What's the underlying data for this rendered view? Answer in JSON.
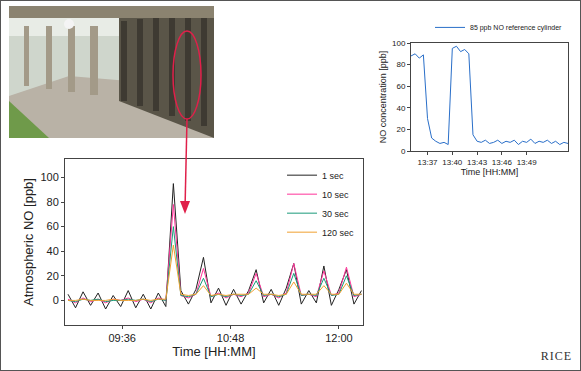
{
  "chart_data": [
    {
      "type": "line",
      "x": [
        540,
        545,
        550,
        555,
        560,
        565,
        570,
        575,
        580,
        585,
        590,
        595,
        600,
        605,
        610,
        615,
        620,
        625,
        630,
        635,
        640,
        645,
        650,
        655,
        660,
        665,
        670,
        675,
        680,
        685,
        690,
        695,
        700,
        705,
        710,
        715,
        720,
        725,
        730,
        735
      ],
      "series": [
        {
          "name": "1 sec",
          "color": "#222222",
          "values": [
            5,
            -6,
            7,
            -4,
            6,
            -7,
            4,
            -5,
            8,
            -6,
            5,
            -7,
            6,
            -5,
            95,
            8,
            -3,
            9,
            35,
            -2,
            10,
            -4,
            9,
            -3,
            8,
            25,
            -2,
            9,
            -4,
            10,
            30,
            -3,
            8,
            -2,
            28,
            -4,
            9,
            25,
            -3,
            8
          ]
        },
        {
          "name": "10 sec",
          "color": "#ff3399",
          "values": [
            1,
            -2,
            2,
            -1,
            1,
            -2,
            1,
            0,
            2,
            -1,
            1,
            -2,
            2,
            0,
            78,
            4,
            2,
            5,
            26,
            3,
            6,
            2,
            5,
            3,
            6,
            22,
            3,
            5,
            2,
            6,
            30,
            4,
            5,
            3,
            24,
            4,
            6,
            27,
            3,
            5
          ]
        },
        {
          "name": "30 sec",
          "color": "#1a9a7a",
          "values": [
            0,
            -1,
            1,
            0,
            1,
            -1,
            0,
            0,
            1,
            0,
            1,
            -1,
            1,
            0,
            60,
            4,
            3,
            5,
            18,
            3,
            5,
            3,
            5,
            4,
            5,
            16,
            4,
            5,
            3,
            5,
            22,
            4,
            5,
            4,
            18,
            4,
            5,
            20,
            4,
            5
          ]
        },
        {
          "name": "120 sec",
          "color": "#f0a030",
          "values": [
            0,
            0,
            1,
            0,
            0,
            0,
            1,
            0,
            0,
            0,
            1,
            0,
            1,
            1,
            45,
            5,
            4,
            5,
            12,
            4,
            5,
            4,
            5,
            5,
            5,
            10,
            5,
            5,
            4,
            5,
            15,
            5,
            5,
            5,
            12,
            5,
            5,
            14,
            5,
            5
          ]
        }
      ],
      "x_label": "Time [HH:MM]",
      "y_label": "Atmospheric NO [ppb]",
      "xlim": [
        538,
        736
      ],
      "xticks": [
        {
          "value": 576,
          "label": "09:36"
        },
        {
          "value": 648,
          "label": "10:48"
        },
        {
          "value": 720,
          "label": "12:00"
        }
      ],
      "ylim": [
        -20,
        115
      ],
      "yticks": [
        0,
        20,
        40,
        60,
        80,
        100
      ],
      "grid": false,
      "legend": "top right"
    },
    {
      "type": "line",
      "x": [
        815,
        815.5,
        816,
        816.5,
        817,
        817.5,
        818,
        818.5,
        819,
        819.5,
        820,
        820.5,
        821,
        821.5,
        822,
        822.5,
        823,
        823.5,
        824,
        824.5,
        825,
        825.5,
        826,
        826.5,
        827,
        827.5,
        828,
        828.5,
        829,
        829.5,
        830,
        830.5,
        831,
        831.5,
        832,
        832.5,
        833,
        833.5,
        834
      ],
      "series": [
        {
          "name": "85 ppb NO reference cylinder",
          "color": "#2a6fc9",
          "values": [
            88,
            90,
            86,
            89,
            30,
            12,
            9,
            7,
            8,
            6,
            95,
            97,
            92,
            94,
            90,
            15,
            9,
            8,
            10,
            7,
            8,
            10,
            7,
            9,
            8,
            10,
            6,
            9,
            8,
            11,
            7,
            9,
            8,
            10,
            7,
            9,
            6,
            8,
            7
          ]
        }
      ],
      "x_label": "Time [HH:MM]",
      "y_label": "NO concentration [ppb]",
      "xlim": [
        815,
        834
      ],
      "xticks": [
        {
          "value": 817,
          "label": "13:37"
        },
        {
          "value": 820,
          "label": "13:40"
        },
        {
          "value": 823,
          "label": "13:43"
        },
        {
          "value": 826,
          "label": "13:46"
        },
        {
          "value": 829,
          "label": "13:49"
        }
      ],
      "ylim": [
        0,
        100
      ],
      "yticks": [
        0,
        20,
        40,
        60,
        80,
        100
      ],
      "grid": false,
      "legend": "top"
    }
  ],
  "logo": "RICE"
}
